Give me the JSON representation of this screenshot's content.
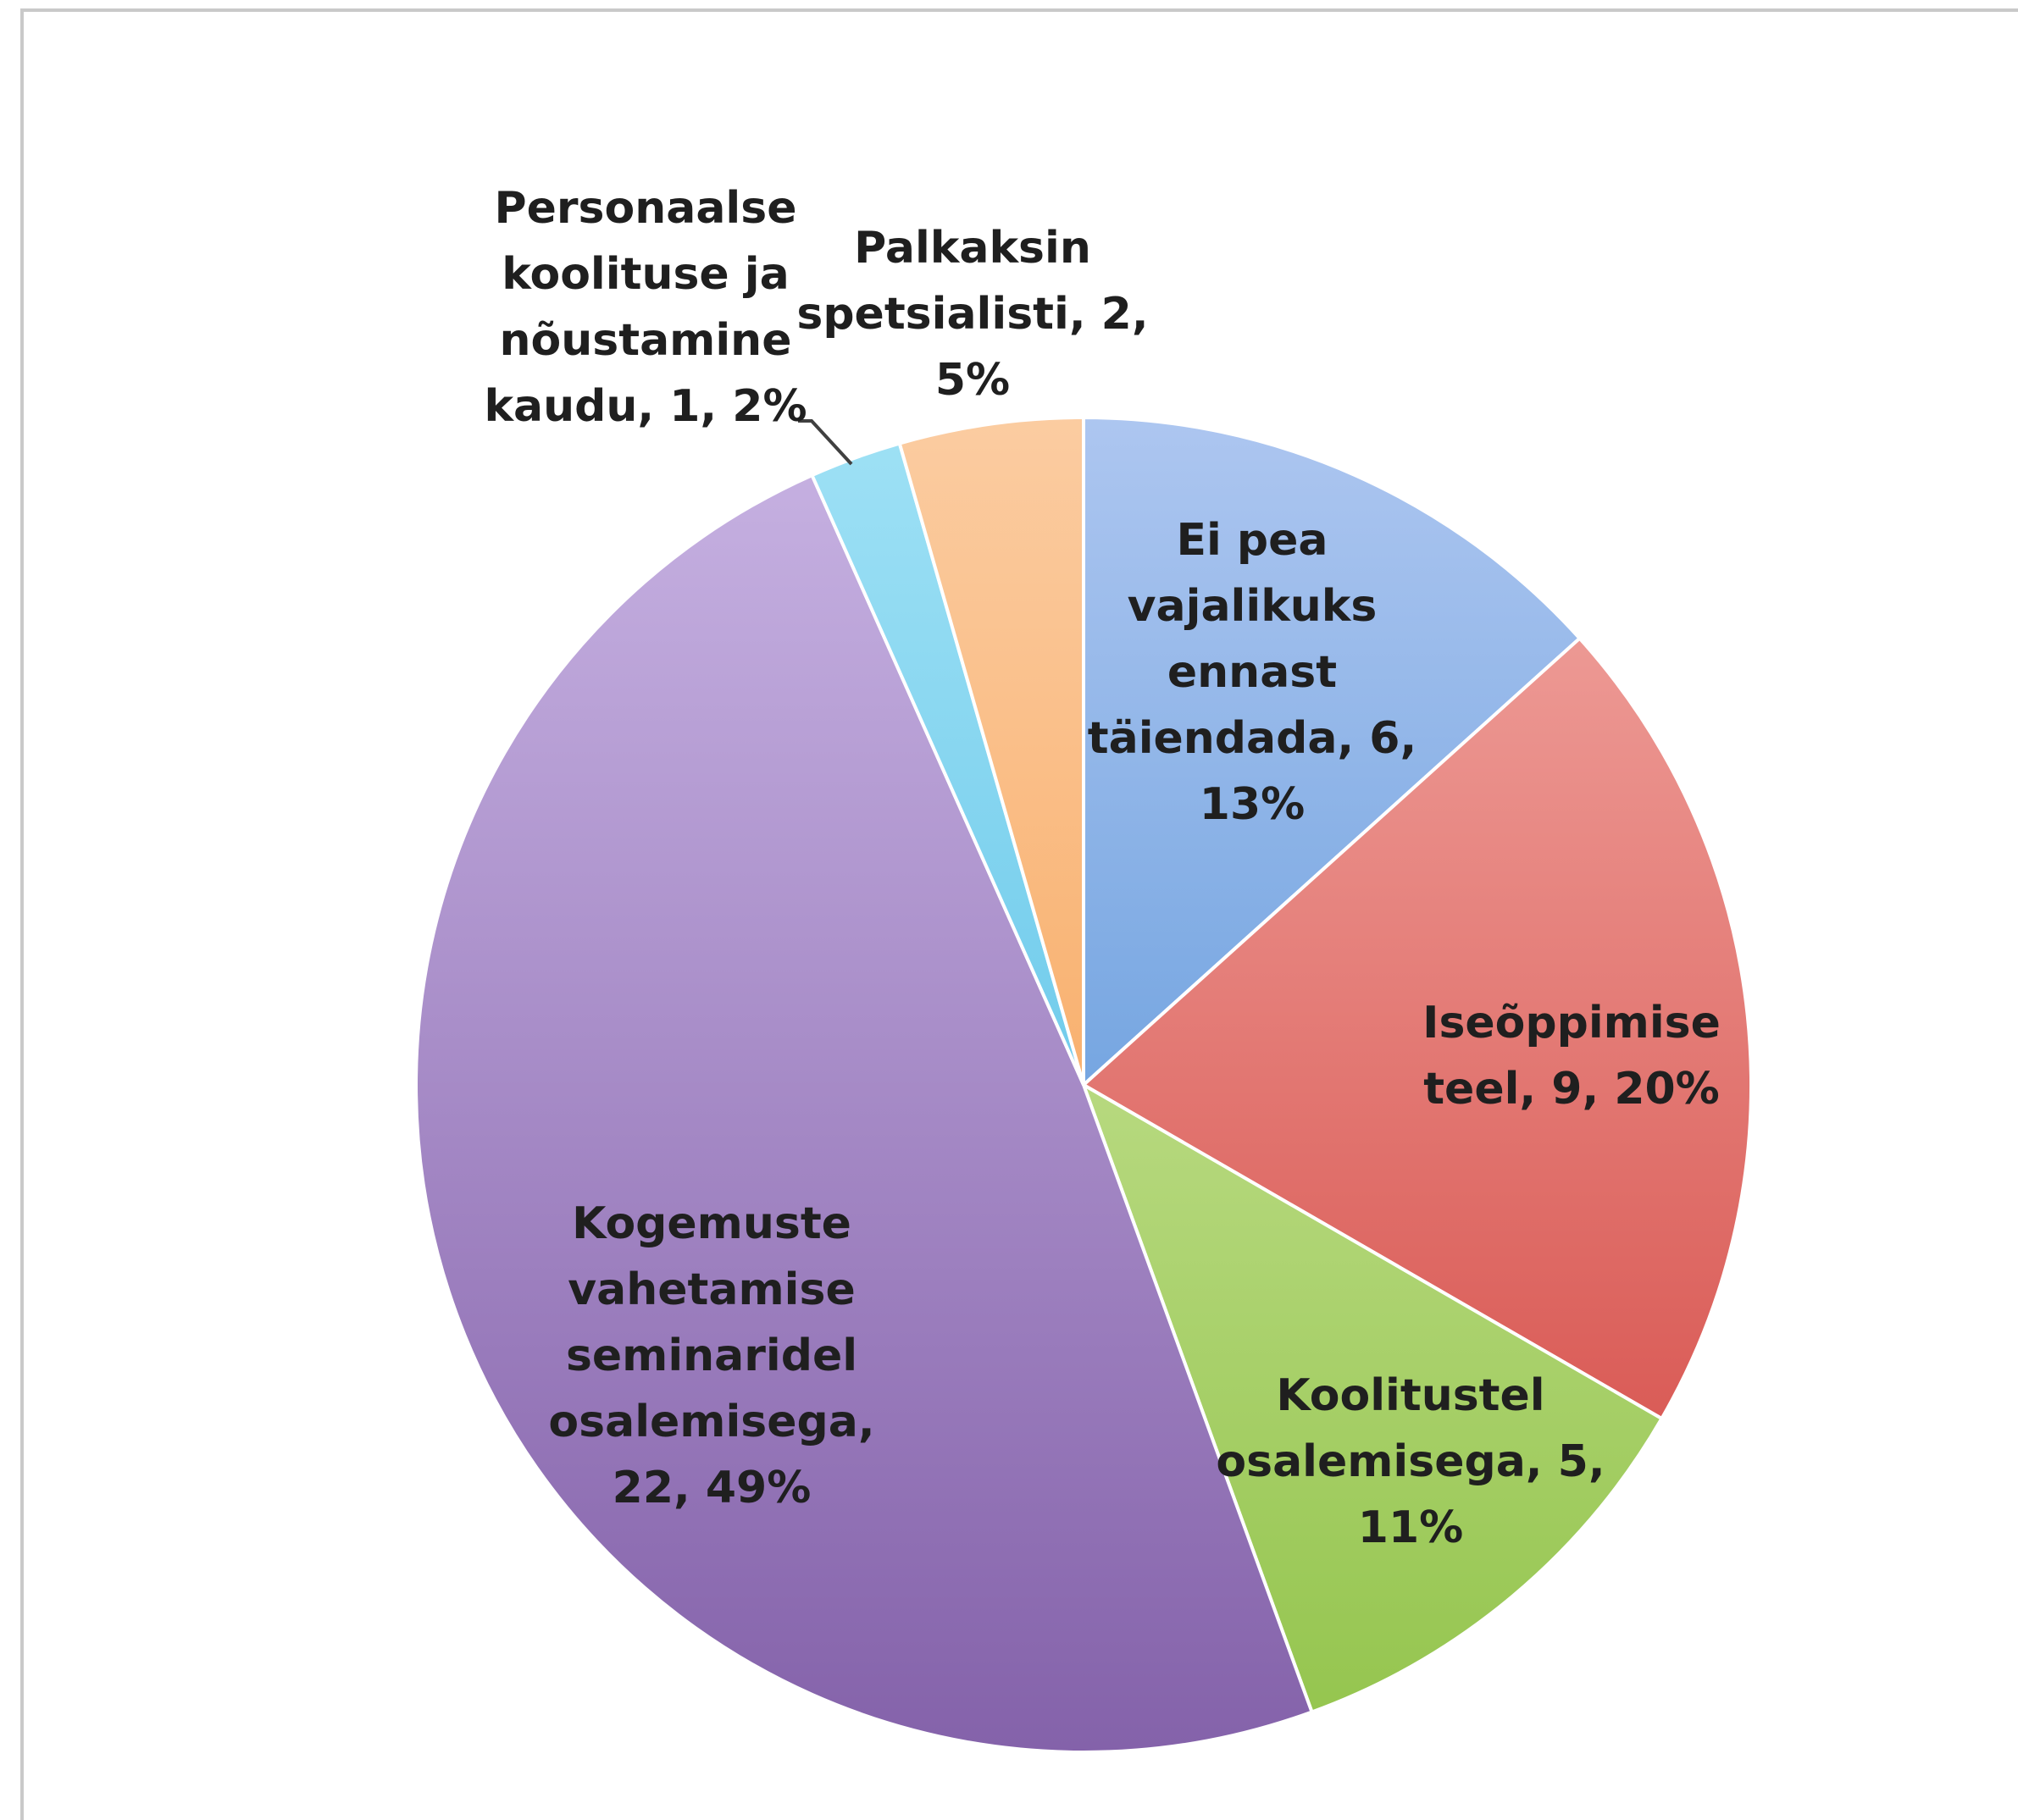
{
  "chart_data": {
    "type": "pie",
    "title": "",
    "slices": [
      {
        "label": "Ei pea vajalikuks ennast täiendada, 6, 13%",
        "category": "Ei pea vajalikuks ennast täiendada",
        "value": 6,
        "percent": 13,
        "color_light": "#adc6f0",
        "color_dark": "#3f86d2"
      },
      {
        "label": "Iseõppimise teel, 9, 20%",
        "category": "Iseõppimise teel",
        "value": 9,
        "percent": 20,
        "color_light": "#f2aaa5",
        "color_dark": "#d2423d"
      },
      {
        "label": "Koolitustel osalemisega, 5, 11%",
        "category": "Koolitustel osalemisega",
        "value": 5,
        "percent": 11,
        "color_light": "#dbeeb2",
        "color_dark": "#93c44c"
      },
      {
        "label": "Kogemuste vahetamise seminaridel osalemisega, 22, 49%",
        "category": "Kogemuste vahetamise seminaridel osalemisega",
        "value": 22,
        "percent": 49,
        "color_light": "#c8b3e3",
        "color_dark": "#8462aa"
      },
      {
        "label": "Personaalse koolituse ja nõustamine kaudu, 1, 2%",
        "category": "Personaalse koolituse ja nõustamine kaudu",
        "value": 1,
        "percent": 2,
        "color_light": "#9fe1f5",
        "color_dark": "#42b6e2"
      },
      {
        "label": "Palkaksin spetsialisti, 2, 5%",
        "category": "Palkaksin spetsialisti",
        "value": 2,
        "percent": 5,
        "color_light": "#fbcca1",
        "color_dark": "#f6963e"
      }
    ],
    "labels": [
      {
        "lines": [
          "Ei pea",
          "vajalikuks",
          "ennast",
          "täiendada, 6,",
          "13%"
        ]
      },
      {
        "lines": [
          "Iseõppimise",
          "teel, 9, 20%"
        ]
      },
      {
        "lines": [
          "Koolitustel",
          "osalemisega, 5,",
          "11%"
        ]
      },
      {
        "lines": [
          "Kogemuste",
          "vahetamise",
          "seminaridel",
          "osalemisega,",
          "22, 49%"
        ]
      },
      {
        "lines": [
          "Personaalse",
          "koolituse ja",
          "nõustamine",
          "kaudu, 1, 2%"
        ]
      },
      {
        "lines": [
          "Palkaksin",
          "spetsialisti, 2,",
          "5%"
        ]
      }
    ],
    "legend": "none",
    "grid": false
  }
}
